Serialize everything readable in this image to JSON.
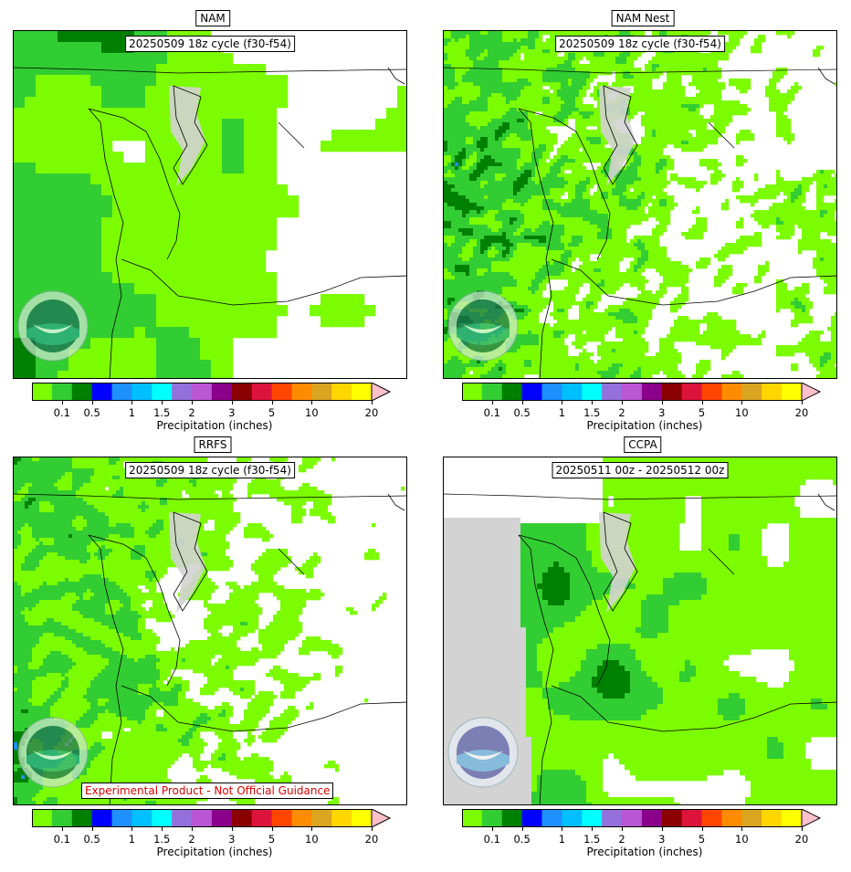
{
  "panels": [
    {
      "title": "NAM",
      "cycle": "20250509 18z cycle (f30-f54)",
      "warning": "",
      "style": "nam"
    },
    {
      "title": "NAM Nest",
      "cycle": "20250509 18z cycle (f30-f54)",
      "warning": "",
      "style": "nest"
    },
    {
      "title": "RRFS",
      "cycle": "20250509 18z cycle (f30-f54)",
      "warning": "Experimental Product - Not Official Guidance",
      "style": "rrfs"
    },
    {
      "title": "CCPA",
      "cycle": "20250511 00z - 20250512 00z",
      "warning": "",
      "style": "ccpa"
    }
  ],
  "colorbar": {
    "caption": "Precipitation (inches)",
    "tick_labels": [
      "0.1",
      "0.5",
      "1",
      "1.5",
      "2",
      "3",
      "5",
      "10",
      "20"
    ],
    "colors": [
      "#7cfc00",
      "#32cd32",
      "#008000",
      "#0000ff",
      "#1e90ff",
      "#00bfff",
      "#00ffff",
      "#9370db",
      "#ba55d3",
      "#8b008b",
      "#8b0000",
      "#dc143c",
      "#ff4500",
      "#ff8c00",
      "#daa520",
      "#ffd700",
      "#ffff00",
      "#ffc0cb"
    ],
    "extend": "max"
  },
  "logos": {
    "nam": "noaa-logo",
    "nest": "noaa-logo",
    "rrfs": "noaa-logo",
    "ccpa": "noaa-logo-color"
  }
}
